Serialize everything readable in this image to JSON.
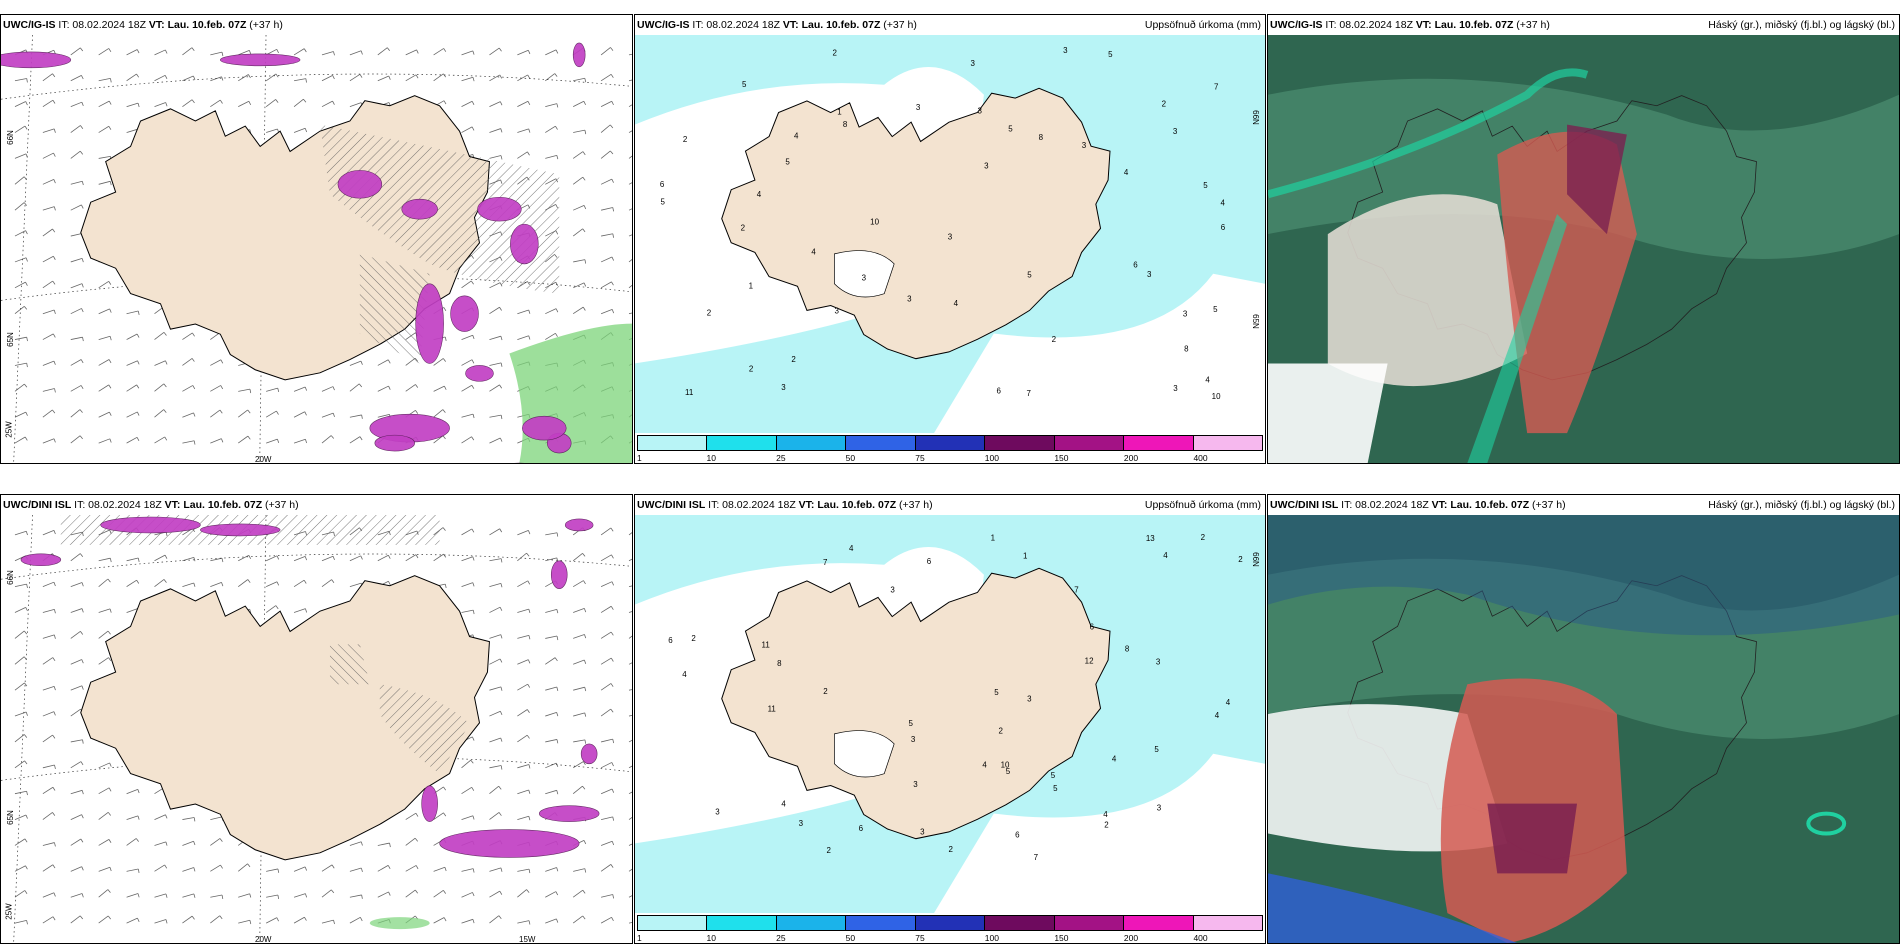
{
  "panels": [
    {
      "id": "p1",
      "model": "UWC/IG-IS",
      "it_label": "IT: 08.02.2024 18Z",
      "vt_label": "VT: Lau. 10.feb. 07Z",
      "lead": "(+37 h)",
      "title_right": "",
      "grid_labels": [
        "66N",
        "65N",
        "25W",
        "20W"
      ]
    },
    {
      "id": "p2",
      "model": "UWC/IG-IS",
      "it_label": "IT: 08.02.2024 18Z",
      "vt_label": "VT: Lau. 10.feb. 07Z",
      "lead": "(+37 h)",
      "title_right": "Uppsöfnuð úrkoma (mm)",
      "grid_labels": [
        "66N",
        "65N"
      ]
    },
    {
      "id": "p3",
      "model": "UWC/IG-IS",
      "it_label": "IT: 08.02.2024 18Z",
      "vt_label": "VT: Lau. 10.feb. 07Z",
      "lead": "(+37 h)",
      "title_right": "Háský (gr.), miðský (fj.bl.) og lágský (bl.)",
      "grid_labels": []
    },
    {
      "id": "p4",
      "model": "UWC/DINI ISL",
      "it_label": "IT: 08.02.2024 18Z",
      "vt_label": "VT: Lau. 10.feb. 07Z",
      "lead": "(+37 h)",
      "title_right": "",
      "grid_labels": [
        "66N",
        "65N",
        "25W",
        "20W",
        "15W"
      ]
    },
    {
      "id": "p5",
      "model": "UWC/DINI ISL",
      "it_label": "IT: 08.02.2024 18Z",
      "vt_label": "VT: Lau. 10.feb. 07Z",
      "lead": "(+37 h)",
      "title_right": "Uppsöfnuð úrkoma (mm)",
      "grid_labels": [
        "66N"
      ]
    },
    {
      "id": "p6",
      "model": "UWC/DINI ISL",
      "it_label": "IT: 08.02.2024 18Z",
      "vt_label": "VT: Lau. 10.feb. 07Z",
      "lead": "(+37 h)",
      "title_right": "Háský (gr.), miðský (fj.bl.) og lágský (bl.)",
      "grid_labels": []
    }
  ],
  "precip_legend": {
    "ticks": [
      "1",
      "10",
      "25",
      "50",
      "75",
      "100",
      "150",
      "200",
      "400"
    ],
    "colors": [
      "#b8f4f6",
      "#1fe0ec",
      "#1bb3ea",
      "#2f63e6",
      "#2231b6",
      "#6e0a5e",
      "#a31285",
      "#ee16b8",
      "#f6b8ee"
    ]
  },
  "colors": {
    "land": "#f3e3d0",
    "sea_precip": "#b8f4f6",
    "sea_white": "#ffffff",
    "cloud_dark": "#2f6650",
    "cloud_mid": "#4c8f70",
    "cloud_high": "#20d0a0",
    "magenta": "#c23fc4",
    "green_precip": "#7cd47a"
  },
  "p2_values": [
    "8",
    "5",
    "8",
    "4",
    "10",
    "5",
    "3",
    "3",
    "3",
    "2",
    "5",
    "3",
    "4",
    "3",
    "2",
    "3",
    "4",
    "6",
    "2",
    "3",
    "4",
    "3",
    "2",
    "1",
    "3",
    "5",
    "11",
    "2",
    "6",
    "7",
    "3",
    "10",
    "2",
    "3",
    "4",
    "5",
    "6",
    "5",
    "3",
    "6",
    "7",
    "2",
    "3",
    "4",
    "8",
    "5",
    "5",
    "3",
    "1",
    "2",
    "3",
    "4"
  ],
  "p5_values": [
    "7",
    "7",
    "4",
    "11",
    "8",
    "6",
    "4",
    "2",
    "3",
    "3",
    "3",
    "6",
    "5",
    "10",
    "12",
    "13",
    "4",
    "4",
    "4",
    "3",
    "4",
    "5",
    "2",
    "2",
    "3",
    "6",
    "11",
    "8",
    "2",
    "3",
    "5",
    "2",
    "7",
    "6",
    "4",
    "3",
    "1",
    "2",
    "4",
    "5",
    "6",
    "5",
    "2",
    "3",
    "1",
    "5",
    "4",
    "3",
    "2"
  ]
}
